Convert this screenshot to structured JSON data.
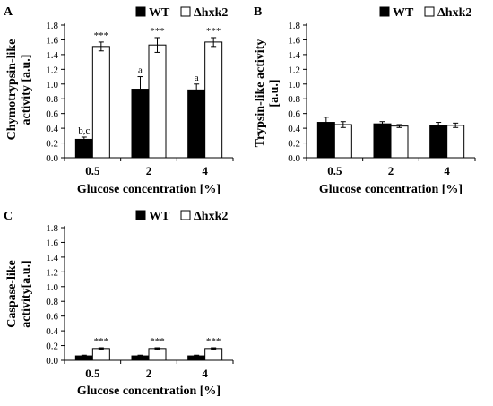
{
  "chart_data": [
    {
      "type": "bar",
      "panel_label": "A",
      "categories": [
        "0.5",
        "2",
        "4"
      ],
      "series": [
        {
          "name": "WT",
          "color": "#000000",
          "values": [
            0.25,
            0.93,
            0.92
          ],
          "errors": [
            0.03,
            0.17,
            0.08
          ]
        },
        {
          "name": "Δhxk2",
          "color": "#ffffff",
          "values": [
            1.51,
            1.53,
            1.57
          ],
          "errors": [
            0.06,
            0.1,
            0.06
          ]
        }
      ],
      "annotations": [
        {
          "category": 0,
          "series": 0,
          "text": "b,c"
        },
        {
          "category": 0,
          "series": 1,
          "text": "***"
        },
        {
          "category": 1,
          "series": 0,
          "text": "a"
        },
        {
          "category": 1,
          "series": 1,
          "text": "***"
        },
        {
          "category": 2,
          "series": 0,
          "text": "a"
        },
        {
          "category": 2,
          "series": 1,
          "text": "***"
        }
      ],
      "xlabel": "Glucose concentration [%]",
      "ylabel_lines": [
        "Chymotrypsin-like",
        "activity [a.u.]"
      ],
      "ylim": [
        0,
        1.8
      ],
      "yticks": [
        "0.0",
        "0.2",
        "0.4",
        "0.6",
        "0.8",
        "1.0",
        "1.2",
        "1.4",
        "1.6",
        "1.8"
      ],
      "legend": "top"
    },
    {
      "type": "bar",
      "panel_label": "B",
      "categories": [
        "0.5",
        "2",
        "4"
      ],
      "series": [
        {
          "name": "WT",
          "color": "#000000",
          "values": [
            0.48,
            0.46,
            0.44
          ],
          "errors": [
            0.07,
            0.03,
            0.04
          ]
        },
        {
          "name": "Δhxk2",
          "color": "#ffffff",
          "values": [
            0.45,
            0.43,
            0.44
          ],
          "errors": [
            0.04,
            0.02,
            0.03
          ]
        }
      ],
      "annotations": [],
      "xlabel": "Glucose concentration [%]",
      "ylabel_lines": [
        "Trypsin-like activity",
        "[a.u.]"
      ],
      "ylim": [
        0,
        1.8
      ],
      "yticks": [
        "0.0",
        "0.2",
        "0.4",
        "0.6",
        "0.8",
        "1.0",
        "1.2",
        "1.4",
        "1.6",
        "1.8"
      ],
      "legend": "top"
    },
    {
      "type": "bar",
      "panel_label": "C",
      "categories": [
        "0.5",
        "2",
        "4"
      ],
      "series": [
        {
          "name": "WT",
          "color": "#000000",
          "values": [
            0.06,
            0.06,
            0.06
          ],
          "errors": [
            0.01,
            0.01,
            0.01
          ]
        },
        {
          "name": "Δhxk2",
          "color": "#ffffff",
          "values": [
            0.16,
            0.16,
            0.16
          ],
          "errors": [
            0.01,
            0.01,
            0.01
          ]
        }
      ],
      "annotations": [
        {
          "category": 0,
          "series": 1,
          "text": "***"
        },
        {
          "category": 1,
          "series": 1,
          "text": "***"
        },
        {
          "category": 2,
          "series": 1,
          "text": "***"
        }
      ],
      "xlabel": "Glucose concentration [%]",
      "ylabel_lines": [
        "Caspase-like",
        "activity[a.u.]"
      ],
      "ylim": [
        0,
        1.8
      ],
      "yticks": [
        "0.0",
        "0.2",
        "0.4",
        "0.6",
        "0.8",
        "1.0",
        "1.2",
        "1.4",
        "1.6",
        "1.8"
      ],
      "legend": "top"
    }
  ]
}
